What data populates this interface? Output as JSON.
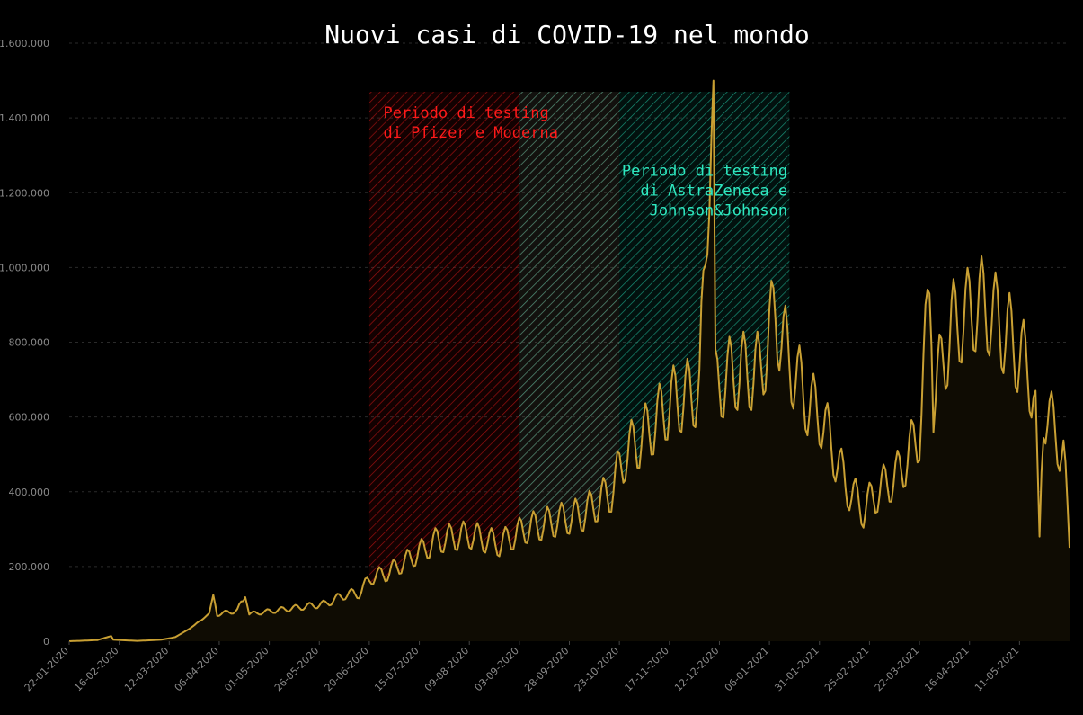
{
  "chart_data": {
    "type": "line",
    "title": "Nuovi casi di COVID-19 nel mondo",
    "xlabel": "",
    "ylabel": "",
    "ylim": [
      0,
      1600000
    ],
    "yticks": [
      0,
      200000,
      400000,
      600000,
      800000,
      1000000,
      1200000,
      1400000,
      1600000
    ],
    "ytick_labels": [
      "0",
      "200.000",
      "400.000",
      "600.000",
      "800.000",
      "1.000.000",
      "1.200.000",
      "1.400.000",
      "1.600.000"
    ],
    "xlim": [
      "2020-01-22",
      "2021-06-05"
    ],
    "xtick_labels": [
      "22-01-2020",
      "16-02-2020",
      "12-03-2020",
      "06-04-2020",
      "01-05-2020",
      "26-05-2020",
      "20-06-2020",
      "15-07-2020",
      "09-08-2020",
      "03-09-2020",
      "28-09-2020",
      "23-10-2020",
      "17-11-2020",
      "12-12-2020",
      "06-01-2021",
      "31-01-2021",
      "25-02-2021",
      "22-03-2021",
      "16-04-2021",
      "11-05-2021"
    ],
    "grid": "horizontal",
    "colors": {
      "line": "#c9a033",
      "fill": "#0f0c03",
      "pfizer_period": "#e01010",
      "astrazeneca_period": "#1fdcb4",
      "background": "#000000"
    },
    "periods": [
      {
        "label": "Periodo di testing\ndi Pfizer e Moderna",
        "start": "2020-06-20",
        "end": "2020-10-23",
        "color": "#e01010"
      },
      {
        "label": "Periodo di testing\ndi AstraZeneca e\nJohnson&Johnson",
        "start": "2020-09-03",
        "end": "2021-01-16",
        "color": "#1fdcb4"
      }
    ],
    "annotations": [
      {
        "lines": [
          "Periodo di testing",
          "di Pfizer e Moderna"
        ],
        "align": "left",
        "color": "#ff1a1a",
        "x": "2020-06-27",
        "y": 1400000
      },
      {
        "lines": [
          "Periodo di testing",
          "di AstraZeneca e",
          "Johnson&Johnson"
        ],
        "align": "right",
        "color": "#2ee8c0",
        "x": "2021-01-15",
        "y": 1245000
      }
    ],
    "series": [
      {
        "values": [
          [
            "2020-01-22",
            0
          ],
          [
            "2020-02-05",
            3000
          ],
          [
            "2020-02-12",
            14000
          ],
          [
            "2020-02-13",
            4000
          ],
          [
            "2020-02-25",
            1000
          ],
          [
            "2020-03-08",
            4000
          ],
          [
            "2020-03-15",
            11000
          ],
          [
            "2020-03-22",
            33000
          ],
          [
            "2020-03-29",
            60000
          ],
          [
            "2020-04-01",
            75000
          ],
          [
            "2020-04-03",
            124000
          ],
          [
            "2020-04-05",
            72000
          ],
          [
            "2020-04-15",
            82000
          ],
          [
            "2020-04-19",
            118000
          ],
          [
            "2020-04-21",
            73000
          ],
          [
            "2020-05-01",
            80000
          ],
          [
            "2020-05-15",
            90000
          ],
          [
            "2020-05-29",
            100000
          ],
          [
            "2020-06-08",
            125000
          ],
          [
            "2020-06-15",
            128000
          ],
          [
            "2020-06-21",
            172000
          ],
          [
            "2020-06-28",
            180000
          ],
          [
            "2020-07-10",
            220000
          ],
          [
            "2020-07-24",
            270000
          ],
          [
            "2020-08-09",
            285000
          ],
          [
            "2020-08-24",
            260000
          ],
          [
            "2020-09-06",
            300000
          ],
          [
            "2020-09-20",
            320000
          ],
          [
            "2020-10-05",
            340000
          ],
          [
            "2020-10-19",
            400000
          ],
          [
            "2020-10-26",
            500000
          ],
          [
            "2020-11-06",
            560000
          ],
          [
            "2020-11-18",
            640000
          ],
          [
            "2020-12-02",
            670000
          ],
          [
            "2020-12-09",
            1500000
          ],
          [
            "2020-12-10",
            680000
          ],
          [
            "2020-12-20",
            720000
          ],
          [
            "2021-01-01",
            720000
          ],
          [
            "2021-01-09",
            880000
          ],
          [
            "2021-01-15",
            760000
          ],
          [
            "2021-01-25",
            640000
          ],
          [
            "2021-02-01",
            600000
          ],
          [
            "2021-02-13",
            420000
          ],
          [
            "2021-02-22",
            350000
          ],
          [
            "2021-03-01",
            400000
          ],
          [
            "2021-03-12",
            450000
          ],
          [
            "2021-03-22",
            560000
          ],
          [
            "2021-03-27",
            930000
          ],
          [
            "2021-03-29",
            650000
          ],
          [
            "2021-04-07",
            840000
          ],
          [
            "2021-04-22",
            905000
          ],
          [
            "2021-05-01",
            850000
          ],
          [
            "2021-05-12",
            760000
          ],
          [
            "2021-05-19",
            670000
          ],
          [
            "2021-05-21",
            280000
          ],
          [
            "2021-05-23",
            625000
          ],
          [
            "2021-05-29",
            560000
          ],
          [
            "2021-06-03",
            480000
          ],
          [
            "2021-06-05",
            250000
          ]
        ]
      }
    ]
  }
}
